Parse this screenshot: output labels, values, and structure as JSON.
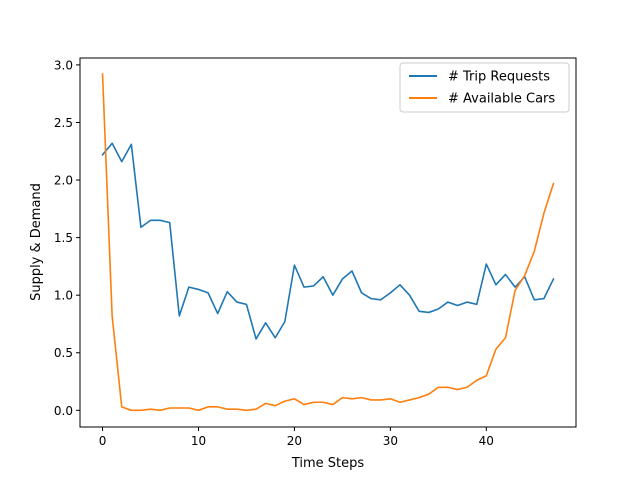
{
  "chart_data": {
    "type": "line",
    "title": "",
    "xlabel": "Time Steps",
    "ylabel": "Supply & Demand",
    "xlim": [
      -2.35,
      49.35
    ],
    "ylim": [
      -0.145,
      3.06
    ],
    "xticks": [
      0,
      10,
      20,
      30,
      40
    ],
    "yticks": [
      0.0,
      0.5,
      1.0,
      1.5,
      2.0,
      2.5,
      3.0
    ],
    "xtick_labels": [
      "0",
      "10",
      "20",
      "30",
      "40"
    ],
    "ytick_labels": [
      "0.0",
      "0.5",
      "1.0",
      "1.5",
      "2.0",
      "2.5",
      "3.0"
    ],
    "grid": false,
    "legend_position": "top-right",
    "x": [
      0,
      1,
      2,
      3,
      4,
      5,
      6,
      7,
      8,
      9,
      10,
      11,
      12,
      13,
      14,
      15,
      16,
      17,
      18,
      19,
      20,
      21,
      22,
      23,
      24,
      25,
      26,
      27,
      28,
      29,
      30,
      31,
      32,
      33,
      34,
      35,
      36,
      37,
      38,
      39,
      40,
      41,
      42,
      43,
      44,
      45,
      46,
      47
    ],
    "series": [
      {
        "name": "# Trip Requests",
        "color": "#1f77b4",
        "values": [
          2.22,
          2.32,
          2.16,
          2.31,
          1.59,
          1.65,
          1.65,
          1.63,
          0.82,
          1.07,
          1.05,
          1.02,
          0.84,
          1.03,
          0.94,
          0.92,
          0.62,
          0.76,
          0.63,
          0.77,
          1.26,
          1.07,
          1.08,
          1.16,
          1.0,
          1.14,
          1.21,
          1.02,
          0.97,
          0.96,
          1.02,
          1.09,
          1.0,
          0.86,
          0.85,
          0.88,
          0.94,
          0.91,
          0.94,
          0.92,
          1.27,
          1.09,
          1.18,
          1.07,
          1.16,
          0.96,
          0.97,
          1.14
        ]
      },
      {
        "name": "# Available Cars",
        "color": "#ff7f0e",
        "values": [
          2.92,
          0.82,
          0.03,
          0.0,
          0.0,
          0.01,
          0.0,
          0.02,
          0.02,
          0.02,
          0.0,
          0.03,
          0.03,
          0.01,
          0.01,
          0.0,
          0.01,
          0.06,
          0.04,
          0.08,
          0.1,
          0.05,
          0.07,
          0.07,
          0.05,
          0.11,
          0.1,
          0.11,
          0.09,
          0.09,
          0.1,
          0.07,
          0.09,
          0.11,
          0.14,
          0.2,
          0.2,
          0.18,
          0.2,
          0.26,
          0.3,
          0.53,
          0.63,
          1.04,
          1.17,
          1.38,
          1.71,
          1.97
        ]
      }
    ]
  }
}
